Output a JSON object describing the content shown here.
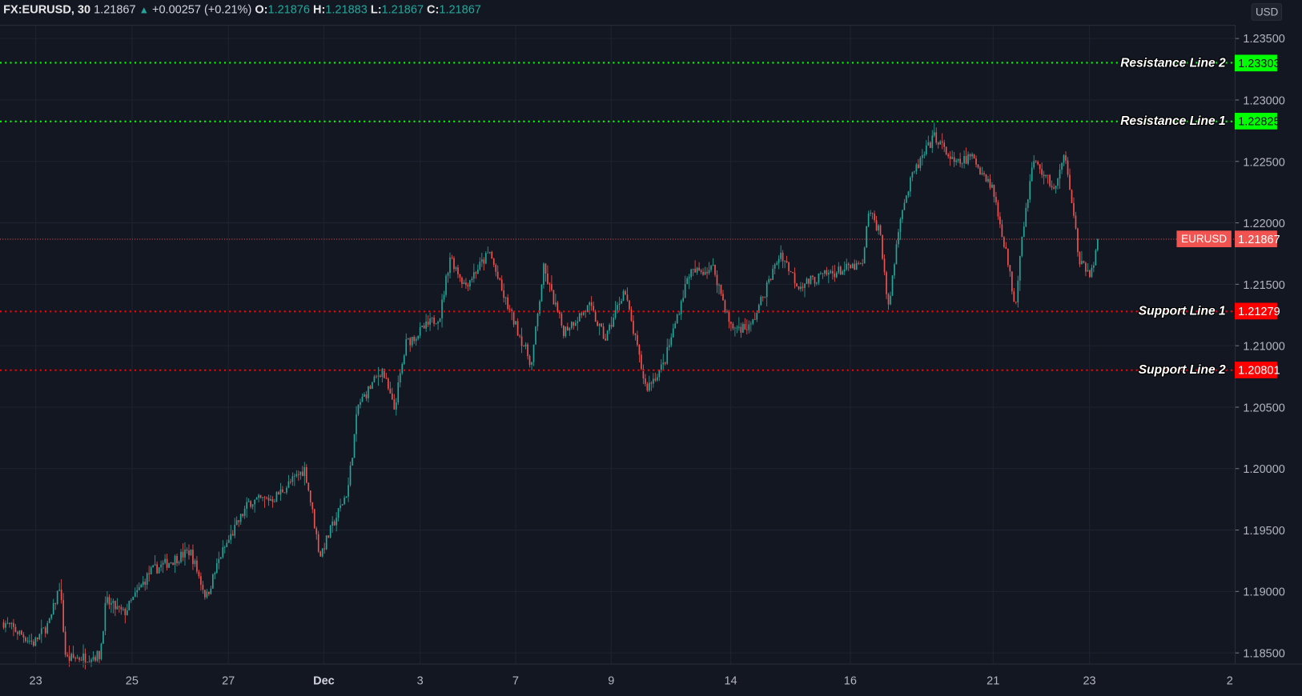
{
  "header": {
    "symbol": "FX:EURUSD, 30",
    "last": "1.21867",
    "change": "+0.00257 (+0.21%)",
    "o_label": "O:",
    "o": "1.21876",
    "h_label": "H:",
    "h": "1.21883",
    "l_label": "L:",
    "l": "1.21867",
    "c_label": "C:",
    "c": "1.21867",
    "direction_icon": "triangle-up-icon"
  },
  "price_axis": {
    "currency": "USD",
    "ticks": [
      "1.23500",
      "1.23000",
      "1.22500",
      "1.22000",
      "1.21500",
      "1.21000",
      "1.20500",
      "1.20000",
      "1.19500",
      "1.19000",
      "1.18500"
    ]
  },
  "time_axis": {
    "ticks": [
      "23",
      "25",
      "27",
      "Dec",
      "3",
      "7",
      "9",
      "14",
      "16",
      "21",
      "23",
      "2"
    ]
  },
  "levels": [
    {
      "label": "Resistance Line 2",
      "price": "1.23303",
      "color": "#00ff00"
    },
    {
      "label": "Resistance Line 1",
      "price": "1.22825",
      "color": "#00ff00"
    },
    {
      "label": "Support Line 1",
      "price": "1.21279",
      "color": "#ff0000"
    },
    {
      "label": "Support Line 2",
      "price": "1.20801",
      "color": "#ff0000"
    }
  ],
  "last_price": {
    "symbol": "EURUSD",
    "price": "1.21867",
    "color": "#f05350"
  },
  "colors": {
    "up": "#26a69a",
    "down": "#ef5350",
    "background": "#131722",
    "grid": "#1f2330"
  },
  "chart_data": {
    "type": "candlestick",
    "symbol": "FX:EURUSD",
    "interval": "30",
    "ylim": [
      1.1845,
      1.2365
    ],
    "grid": true,
    "approx_close_path": [
      [
        "2020-11-22T08:00",
        1.1875
      ],
      [
        "2020-11-22T23:00",
        1.1858
      ],
      [
        "2020-11-23T07:00",
        1.1875
      ],
      [
        "2020-11-23T12:00",
        1.1906
      ],
      [
        "2020-11-23T15:00",
        1.1845
      ],
      [
        "2020-11-24T08:00",
        1.1848
      ],
      [
        "2020-11-24T11:00",
        1.1892
      ],
      [
        "2020-11-24T20:00",
        1.1882
      ],
      [
        "2020-11-25T09:00",
        1.1916
      ],
      [
        "2020-11-26T05:00",
        1.1933
      ],
      [
        "2020-11-26T13:00",
        1.1895
      ],
      [
        "2020-11-26T20:00",
        1.1929
      ],
      [
        "2020-11-27T21:00",
        1.1973
      ],
      [
        "2020-11-28T22:00",
        1.1976
      ],
      [
        "2020-11-30T05:00",
        1.2
      ],
      [
        "2020-11-30T20:00",
        1.1929
      ],
      [
        "2020-12-01T12:00",
        1.1983
      ],
      [
        "2020-12-01T17:00",
        1.2051
      ],
      [
        "2020-12-02T05:00",
        1.2081
      ],
      [
        "2020-12-02T11:00",
        1.2048
      ],
      [
        "2020-12-02T17:00",
        1.2102
      ],
      [
        "2020-12-03T20:00",
        1.2125
      ],
      [
        "2020-12-04T06:00",
        1.2173
      ],
      [
        "2020-12-04T21:00",
        1.2149
      ],
      [
        "2020-12-05T22:00",
        1.2176
      ],
      [
        "2020-12-06T11:00",
        1.2142
      ],
      [
        "2020-12-07T08:00",
        1.2085
      ],
      [
        "2020-12-07T14:00",
        1.2163
      ],
      [
        "2020-12-08T00:00",
        1.2112
      ],
      [
        "2020-12-08T13:00",
        1.2132
      ],
      [
        "2020-12-08T21:00",
        1.2105
      ],
      [
        "2020-12-09T13:00",
        1.2146
      ],
      [
        "2020-12-10T11:00",
        1.2065
      ],
      [
        "2020-12-11T05:00",
        1.2085
      ],
      [
        "2020-12-12T06:00",
        1.2159
      ],
      [
        "2020-12-13T07:00",
        1.2163
      ],
      [
        "2020-12-14T00:00",
        1.2115
      ],
      [
        "2020-12-14T08:00",
        1.2115
      ],
      [
        "2020-12-14T20:00",
        1.2176
      ],
      [
        "2020-12-15T03:00",
        1.2149
      ],
      [
        "2020-12-15T16:00",
        1.2159
      ],
      [
        "2020-12-16T11:00",
        1.2166
      ],
      [
        "2020-12-16T15:00",
        1.221
      ],
      [
        "2020-12-17T01:00",
        1.2193
      ],
      [
        "2020-12-17T08:00",
        1.2129
      ],
      [
        "2020-12-17T18:00",
        1.2207
      ],
      [
        "2020-12-18T05:00",
        1.224
      ],
      [
        "2020-12-18T23:00",
        1.2271
      ],
      [
        "2020-12-19T16:00",
        1.2247
      ],
      [
        "2020-12-20T06:00",
        1.2254
      ],
      [
        "2020-12-20T23:00",
        1.223
      ],
      [
        "2020-12-21T06:00",
        1.218
      ],
      [
        "2020-12-21T11:00",
        1.2132
      ],
      [
        "2020-12-21T14:00",
        1.2186
      ],
      [
        "2020-12-21T20:00",
        1.2251
      ],
      [
        "2020-12-22T07:00",
        1.2227
      ],
      [
        "2020-12-22T12:00",
        1.2257
      ],
      [
        "2020-12-22T16:00",
        1.221
      ],
      [
        "2020-12-22T19:00",
        1.2166
      ],
      [
        "2020-12-23T01:00",
        1.2159
      ],
      [
        "2020-12-23T05:00",
        1.21867
      ]
    ]
  }
}
